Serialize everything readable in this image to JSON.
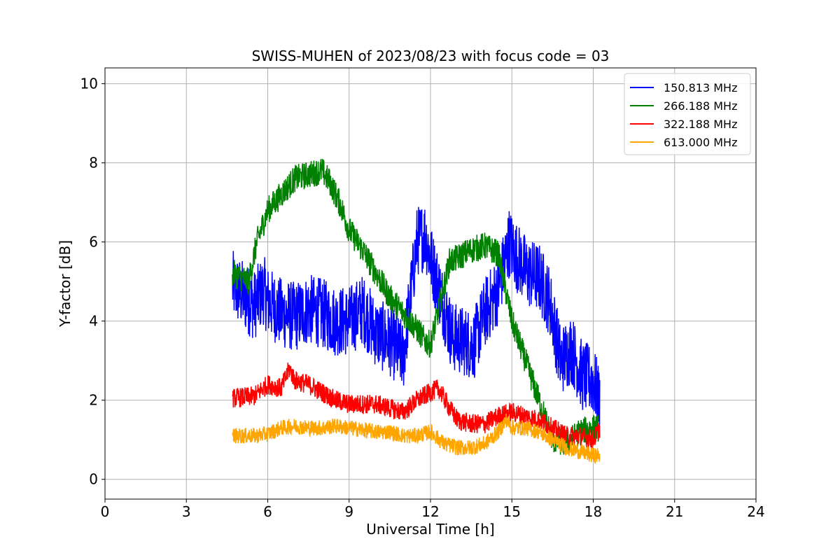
{
  "chart_data": {
    "type": "line",
    "title": "SWISS-MUHEN of 2023/08/23 with focus code = 03",
    "xlabel": "Universal Time [h]",
    "ylabel": "Y-factor [dB]",
    "xlim": [
      0,
      24
    ],
    "ylim": [
      -0.5,
      10.4
    ],
    "xticks": [
      0,
      3,
      6,
      9,
      12,
      15,
      18,
      21,
      24
    ],
    "yticks": [
      0,
      2,
      4,
      6,
      8,
      10
    ],
    "grid": true,
    "legend_position": "top-right",
    "series": [
      {
        "name": "150.813 MHz",
        "color": "#0000ff",
        "noise_scale": 0.9,
        "x": [
          4.7,
          5.0,
          5.5,
          5.85,
          6.0,
          6.5,
          7.0,
          7.5,
          8.0,
          8.5,
          9.0,
          9.5,
          10.0,
          10.5,
          11.0,
          11.5,
          11.8,
          12.0,
          12.4,
          12.8,
          13.2,
          13.6,
          14.0,
          14.5,
          14.9,
          15.2,
          15.6,
          16.0,
          16.4,
          16.8,
          17.2,
          17.6,
          18.0,
          18.25
        ],
        "y": [
          4.9,
          4.7,
          4.4,
          4.8,
          4.5,
          4.2,
          4.1,
          4.3,
          4.2,
          4.0,
          4.0,
          4.3,
          3.7,
          3.5,
          3.1,
          6.0,
          6.2,
          5.6,
          4.6,
          3.6,
          3.5,
          3.4,
          4.2,
          4.8,
          6.0,
          5.6,
          5.2,
          5.1,
          4.5,
          3.0,
          3.3,
          2.6,
          2.5,
          1.9
        ]
      },
      {
        "name": "266.188 MHz",
        "color": "#008000",
        "noise_scale": 0.35,
        "x": [
          4.7,
          5.3,
          5.6,
          6.0,
          6.5,
          7.0,
          7.5,
          8.0,
          8.3,
          8.7,
          9.0,
          9.5,
          10.0,
          10.5,
          11.0,
          11.5,
          11.8,
          12.0,
          12.3,
          12.7,
          13.0,
          13.5,
          14.0,
          14.5,
          15.0,
          15.5,
          16.0,
          16.5,
          17.0,
          17.5,
          18.0,
          18.2
        ],
        "y": [
          5.2,
          5.0,
          6.0,
          6.8,
          7.2,
          7.6,
          7.7,
          7.8,
          7.5,
          6.9,
          6.3,
          5.8,
          5.2,
          4.6,
          4.2,
          3.8,
          3.5,
          3.4,
          4.3,
          5.5,
          5.6,
          5.8,
          5.9,
          5.7,
          4.0,
          3.0,
          2.0,
          1.0,
          0.9,
          1.2,
          1.3,
          1.3
        ]
      },
      {
        "name": "322.188 MHz",
        "color": "#ff0000",
        "noise_scale": 0.25,
        "x": [
          4.7,
          5.5,
          6.0,
          6.5,
          6.8,
          7.0,
          7.5,
          8.0,
          8.5,
          9.0,
          9.5,
          10.0,
          10.5,
          11.0,
          11.5,
          12.0,
          12.3,
          12.7,
          13.0,
          13.5,
          14.0,
          14.5,
          15.0,
          15.5,
          16.0,
          16.5,
          17.0,
          17.5,
          18.0,
          18.25
        ],
        "y": [
          2.05,
          2.1,
          2.4,
          2.3,
          2.8,
          2.5,
          2.4,
          2.2,
          2.0,
          1.9,
          1.9,
          1.9,
          1.8,
          1.7,
          2.0,
          2.2,
          2.3,
          1.8,
          1.5,
          1.4,
          1.4,
          1.6,
          1.7,
          1.6,
          1.5,
          1.3,
          1.1,
          1.1,
          1.0,
          1.3
        ]
      },
      {
        "name": "613.000 MHz",
        "color": "#ffa500",
        "noise_scale": 0.2,
        "x": [
          4.7,
          5.5,
          6.0,
          6.5,
          7.0,
          7.5,
          8.0,
          8.5,
          9.0,
          9.5,
          10.0,
          10.5,
          11.0,
          11.5,
          12.0,
          12.5,
          13.0,
          13.5,
          14.0,
          14.5,
          14.8,
          15.0,
          15.5,
          16.0,
          16.5,
          17.0,
          17.5,
          18.0,
          18.25
        ],
        "y": [
          1.1,
          1.1,
          1.15,
          1.3,
          1.35,
          1.3,
          1.3,
          1.35,
          1.3,
          1.25,
          1.2,
          1.2,
          1.1,
          1.1,
          1.2,
          0.9,
          0.8,
          0.8,
          0.9,
          1.2,
          1.5,
          1.3,
          1.3,
          1.2,
          1.0,
          0.8,
          0.7,
          0.6,
          0.6
        ]
      }
    ]
  }
}
